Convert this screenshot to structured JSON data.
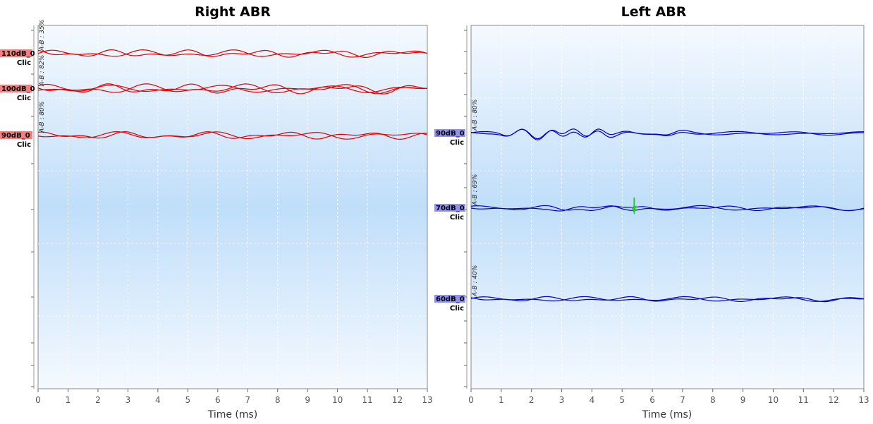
{
  "chart_data": [
    {
      "type": "line",
      "title": "Right ABR",
      "xlabel": "Time (ms)",
      "xlim": [
        0,
        13
      ],
      "xticks": [
        0,
        1,
        2,
        3,
        4,
        5,
        6,
        7,
        8,
        9,
        10,
        11,
        12,
        13
      ],
      "trace_color": "#e00000",
      "label_bg": "#f08080",
      "grid": true,
      "traces": [
        {
          "level": "110dB_0",
          "stim": "Clic",
          "ab": "A-B : 35%",
          "waves": [
            {
              "amp": 3,
              "freq": 1.1,
              "phase": 0.0
            },
            {
              "amp": 3,
              "freq": 1.3,
              "phase": 1.4
            }
          ]
        },
        {
          "level": "100dB_0",
          "stim": "Clic",
          "ab": "A-B : 82%",
          "waves": [
            {
              "amp": 4,
              "freq": 1.0,
              "phase": 0.5
            },
            {
              "amp": 4,
              "freq": 1.2,
              "phase": 2.2
            },
            {
              "amp": 3,
              "freq": 0.9,
              "phase": 3.5
            }
          ]
        },
        {
          "level": "90dB_0",
          "stim": "Clic",
          "ab": "A-B : 80%",
          "waves": [
            {
              "amp": 3,
              "freq": 1.2,
              "phase": 0.8
            },
            {
              "amp": 3,
              "freq": 1.0,
              "phase": 2.6
            }
          ]
        }
      ]
    },
    {
      "type": "line",
      "title": "Left ABR",
      "xlabel": "Time (ms)",
      "xlim": [
        0,
        13
      ],
      "xticks": [
        0,
        1,
        2,
        3,
        4,
        5,
        6,
        7,
        8,
        9,
        10,
        11,
        12,
        13
      ],
      "trace_color": "#0000c8",
      "label_bg": "#9090f0",
      "grid": true,
      "traces": [
        {
          "level": "90dB_0",
          "stim": "Clic",
          "ab": "A-B : 80%",
          "peaks": [
            [
              1.2,
              -4
            ],
            [
              1.7,
              7
            ],
            [
              2.2,
              -8
            ],
            [
              2.7,
              6
            ],
            [
              3.0,
              -5
            ],
            [
              3.4,
              5
            ],
            [
              3.8,
              -6
            ],
            [
              4.2,
              6
            ],
            [
              4.6,
              -5
            ],
            [
              5.2,
              2
            ],
            [
              6.5,
              -3
            ],
            [
              7.0,
              2
            ]
          ],
          "waves": [
            {
              "amp": 1.5,
              "freq": 0.8,
              "phase": 0.3
            },
            {
              "amp": 1.5,
              "freq": 0.9,
              "phase": 1.9
            }
          ]
        },
        {
          "level": "70dB_0",
          "stim": "Clic",
          "ab": "A-B : 69%",
          "peaks": [
            [
              3.0,
              -2
            ],
            [
              4.0,
              -3
            ],
            [
              4.7,
              4
            ],
            [
              5.4,
              -2
            ]
          ],
          "waves": [
            {
              "amp": 2,
              "freq": 0.9,
              "phase": 0.7
            },
            {
              "amp": 2,
              "freq": 1.1,
              "phase": 2.4
            }
          ]
        },
        {
          "level": "60dB_0",
          "stim": "Clic",
          "ab": "A-B : 40%",
          "waves": [
            {
              "amp": 2,
              "freq": 1.0,
              "phase": 0.2
            },
            {
              "amp": 2,
              "freq": 1.2,
              "phase": 1.8
            }
          ]
        }
      ],
      "marker": {
        "x": 5.4,
        "level": "70dB_0",
        "color": "#22cc22"
      }
    }
  ]
}
